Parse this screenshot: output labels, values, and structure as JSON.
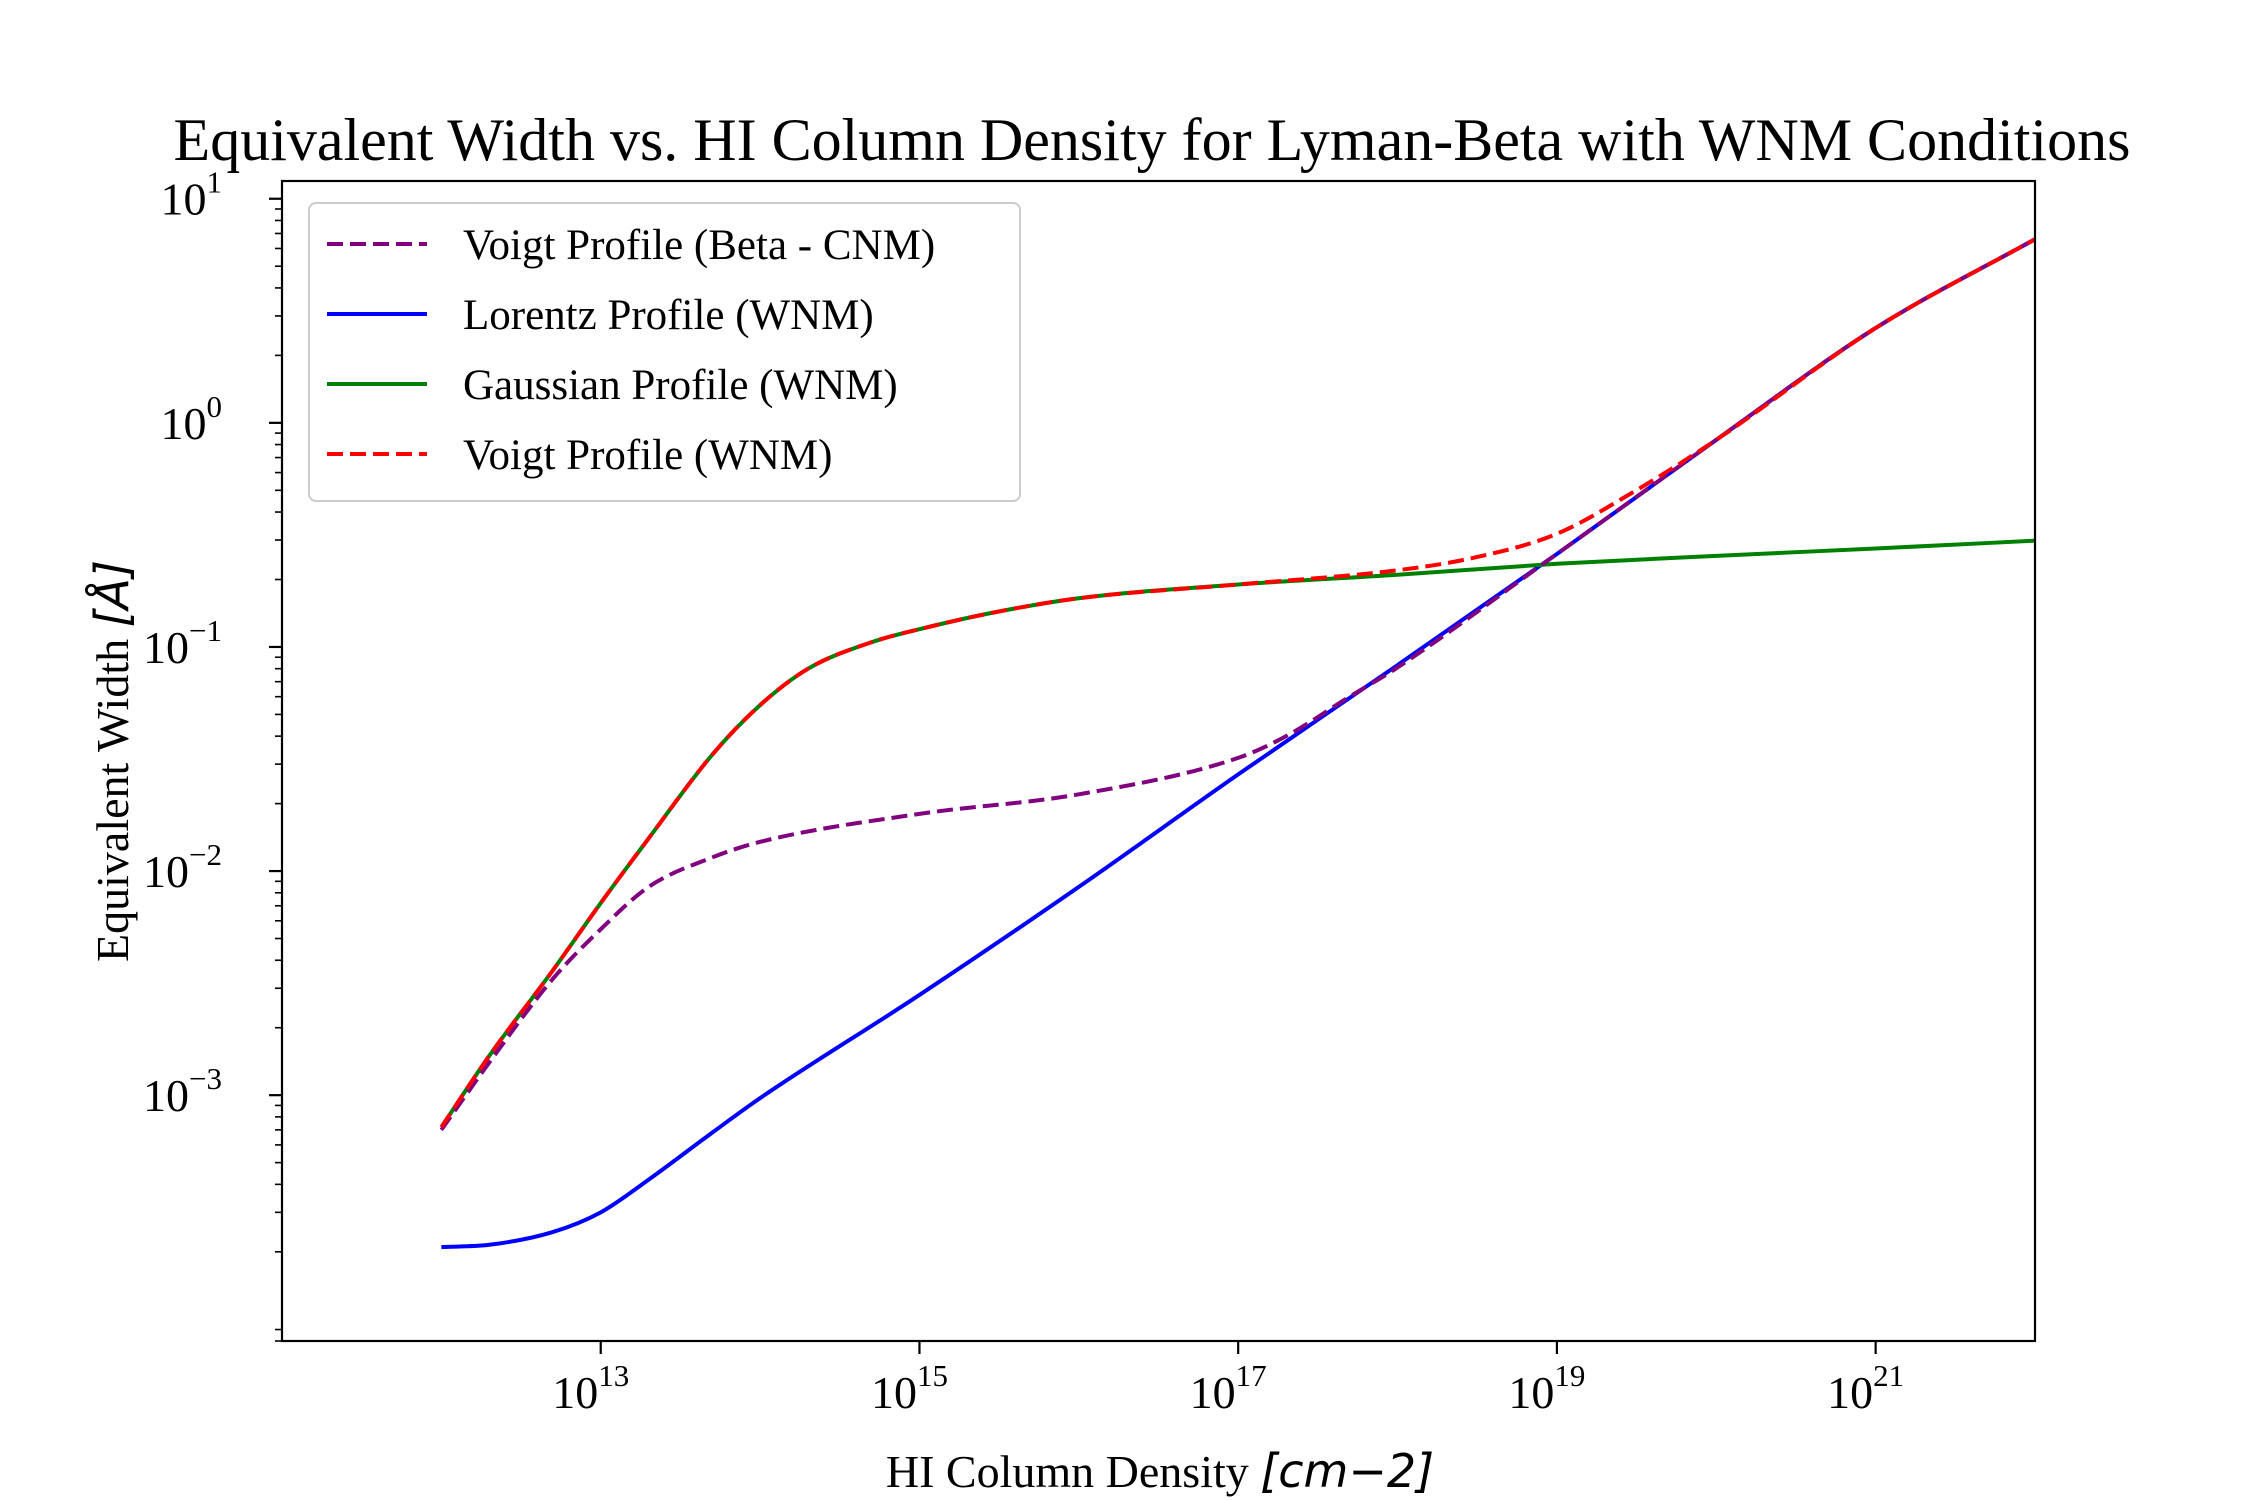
{
  "chart_data": {
    "type": "line",
    "title": "Equivalent Width vs. HI Column Density for Lyman-Beta with WNM Conditions",
    "xlabel_text": "HI Column Density ",
    "xlabel_unit": "[cm−2]",
    "ylabel_text": "Equivalent Width ",
    "ylabel_unit": "[Å]",
    "x_scale": "log",
    "y_scale": "log",
    "xlim": [
      100000000000.0,
      1e+22
    ],
    "ylim": [
      8e-05,
      12
    ],
    "x_ticks": [
      {
        "value": 10000000000000.0,
        "base": "10",
        "exp": "13"
      },
      {
        "value": 1000000000000000.0,
        "base": "10",
        "exp": "15"
      },
      {
        "value": 1e+17,
        "base": "10",
        "exp": "17"
      },
      {
        "value": 1e+19,
        "base": "10",
        "exp": "19"
      },
      {
        "value": 1e+21,
        "base": "10",
        "exp": "21"
      }
    ],
    "y_ticks": [
      {
        "value": 0.001,
        "base": "10",
        "exp": "−3"
      },
      {
        "value": 0.01,
        "base": "10",
        "exp": "−2"
      },
      {
        "value": 0.1,
        "base": "10",
        "exp": "−1"
      },
      {
        "value": 1,
        "base": "10",
        "exp": "0"
      },
      {
        "value": 10,
        "base": "10",
        "exp": "1"
      }
    ],
    "grid": false,
    "legend_position": "upper-left",
    "series": [
      {
        "name": "Voigt Profile (Beta - CNM)",
        "color": "#800080",
        "style": "dashed",
        "x": [
          1000000000000.0,
          2000000000000.0,
          5000000000000.0,
          10000000000000.0,
          20000000000000.0,
          50000000000000.0,
          100000000000000.0,
          1000000000000000.0,
          1e+16,
          1e+17,
          2e+17,
          5e+17,
          1e+18,
          1e+19,
          1e+20,
          1e+21,
          1e+22
        ],
        "y": [
          0.0007,
          0.0014,
          0.0033,
          0.0055,
          0.0085,
          0.0115,
          0.0135,
          0.018,
          0.022,
          0.032,
          0.04,
          0.06,
          0.081,
          0.26,
          0.84,
          2.65,
          6.6
        ]
      },
      {
        "name": "Lorentz Profile (WNM)",
        "color": "#0000ff",
        "style": "solid",
        "x": [
          1000000000000.0,
          2000000000000.0,
          5000000000000.0,
          10000000000000.0,
          20000000000000.0,
          50000000000000.0,
          100000000000000.0,
          1000000000000000.0,
          1e+16,
          1e+17,
          1e+18,
          1e+19,
          1e+20,
          1e+21,
          1e+22
        ],
        "y": [
          0.00021,
          0.000215,
          0.000245,
          0.0003,
          0.00042,
          0.00068,
          0.00097,
          0.0028,
          0.0085,
          0.027,
          0.083,
          0.26,
          0.84,
          2.65,
          6.6
        ]
      },
      {
        "name": "Gaussian Profile (WNM)",
        "color": "#008000",
        "style": "solid",
        "x": [
          1000000000000.0,
          2000000000000.0,
          5000000000000.0,
          10000000000000.0,
          20000000000000.0,
          50000000000000.0,
          100000000000000.0,
          200000000000000.0,
          500000000000000.0,
          1000000000000000.0,
          3000000000000000.0,
          1e+16,
          1e+17,
          1e+18,
          1e+19,
          1e+20,
          1e+21,
          1e+22
        ],
        "y": [
          0.00072,
          0.0015,
          0.0036,
          0.0072,
          0.014,
          0.033,
          0.055,
          0.08,
          0.105,
          0.12,
          0.143,
          0.165,
          0.19,
          0.21,
          0.235,
          0.255,
          0.275,
          0.298
        ]
      },
      {
        "name": "Voigt Profile (WNM)",
        "color": "#ff0000",
        "style": "dashed",
        "x": [
          1000000000000.0,
          2000000000000.0,
          5000000000000.0,
          10000000000000.0,
          20000000000000.0,
          50000000000000.0,
          100000000000000.0,
          200000000000000.0,
          500000000000000.0,
          1000000000000000.0,
          3000000000000000.0,
          1e+16,
          1e+17,
          1e+18,
          3e+18,
          1e+19,
          3e+19,
          1e+20,
          1e+21,
          1e+22
        ],
        "y": [
          0.00072,
          0.0015,
          0.0036,
          0.0072,
          0.014,
          0.033,
          0.055,
          0.08,
          0.105,
          0.12,
          0.143,
          0.165,
          0.19,
          0.22,
          0.25,
          0.32,
          0.49,
          0.84,
          2.65,
          6.6
        ]
      }
    ]
  }
}
